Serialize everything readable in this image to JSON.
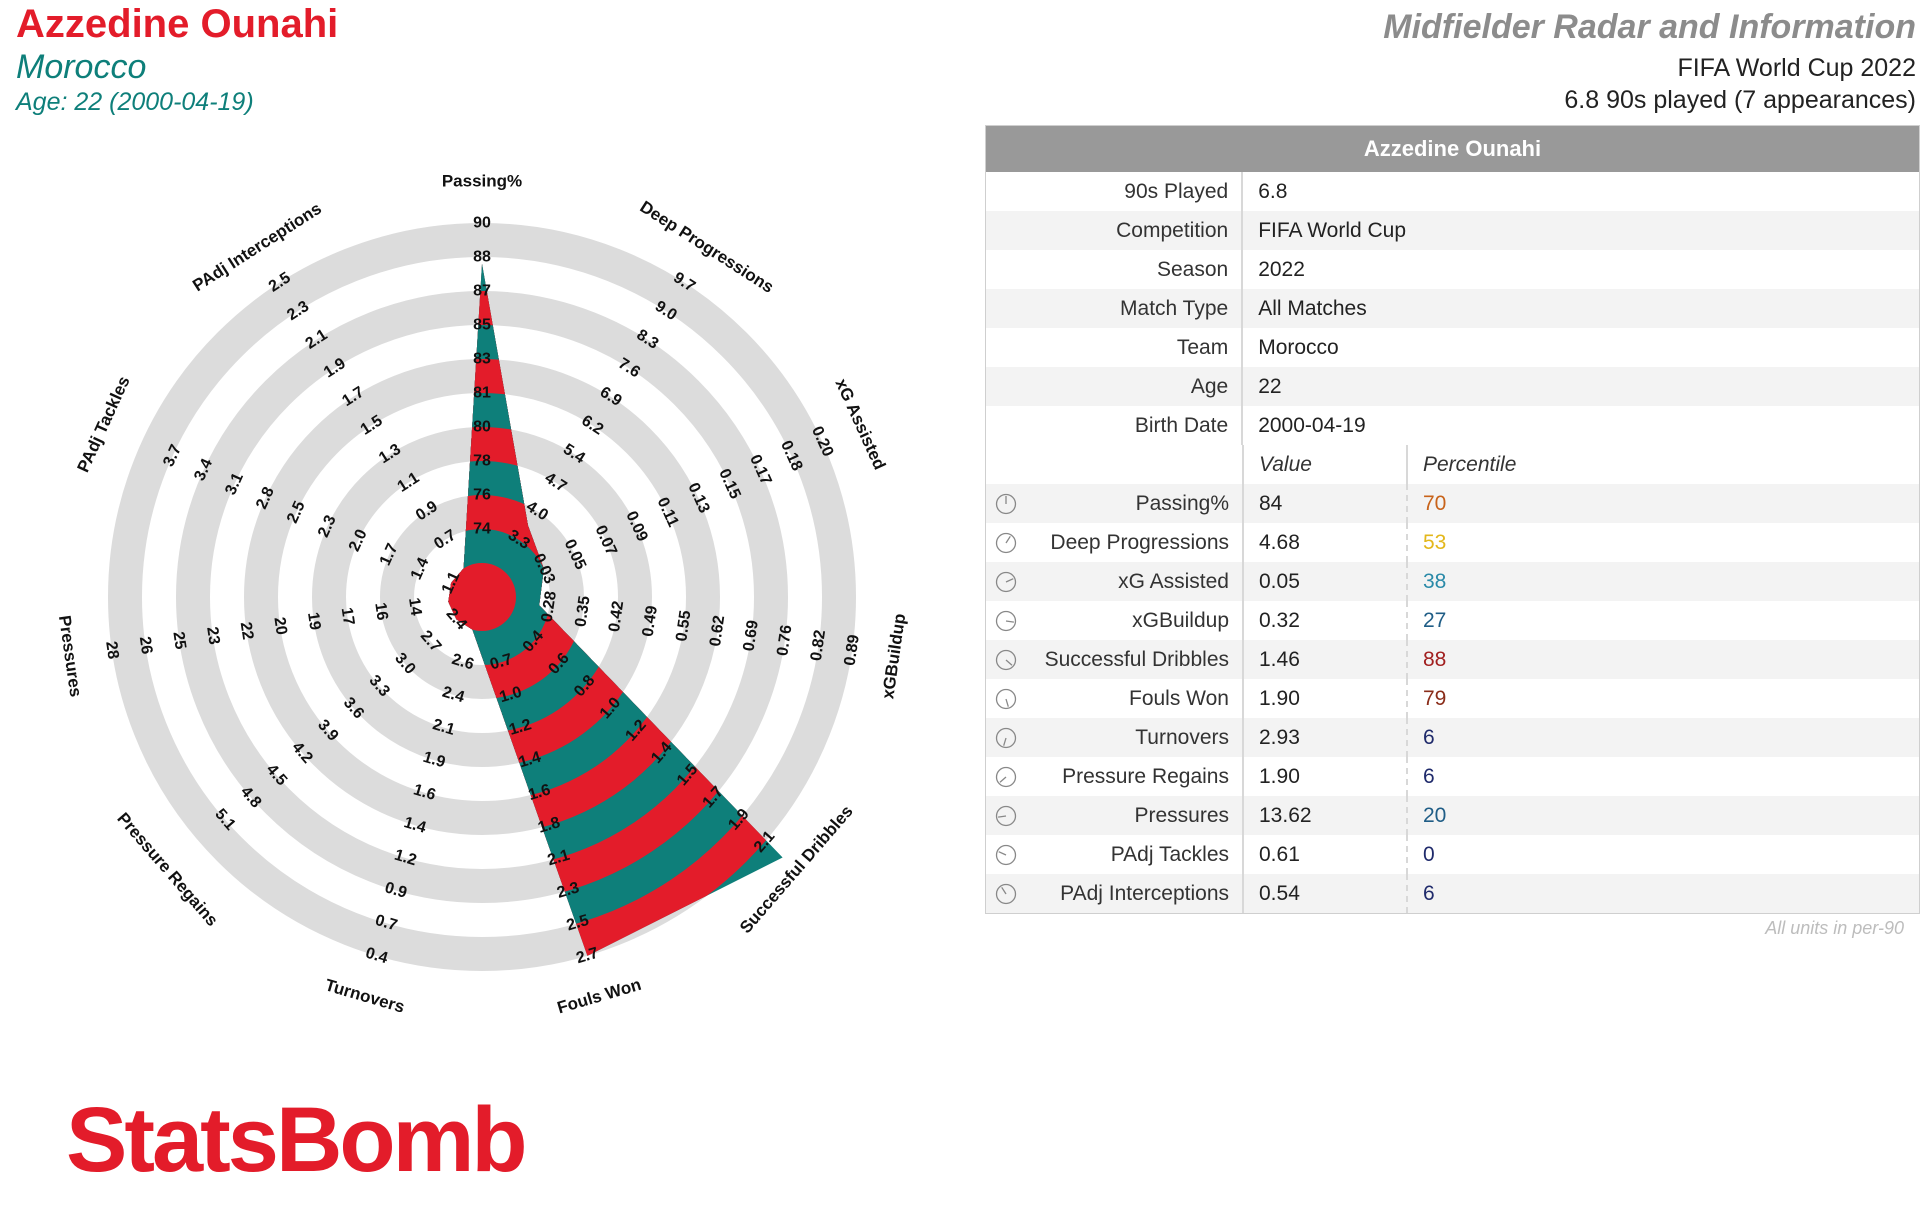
{
  "header": {
    "player_name": "Azzedine Ounahi",
    "team": "Morocco",
    "age_line": "Age: 22 (2000-04-19)",
    "title": "Midfielder Radar and Information",
    "competition_line": "FIFA World Cup 2022",
    "played_line": "6.8 90s played (7 appearances)"
  },
  "colors": {
    "red": "#e31c2a",
    "teal": "#0e7f7a",
    "ring_grey": "#dcdcdc",
    "p70": "#c8631a",
    "p53": "#e3b71b",
    "p38": "#2a8aa8",
    "p27": "#1f5d86",
    "p88": "#a11f1f",
    "p79": "#8a2d1a",
    "plow": "#1f2a6b"
  },
  "chart_data": {
    "type": "radar",
    "categories": [
      "Passing%",
      "Deep Progressions",
      "xG Assisted",
      "xGBuildup",
      "Successful Dribbles",
      "Fouls Won",
      "Turnovers",
      "Pressure Regains",
      "Pressures",
      "PAdj Tackles",
      "PAdj Interceptions"
    ],
    "tick_labels": [
      [
        "74",
        "76",
        "78",
        "80",
        "81",
        "83",
        "85",
        "87",
        "88",
        "90"
      ],
      [
        "3.3",
        "4.0",
        "4.7",
        "5.4",
        "6.2",
        "6.9",
        "7.6",
        "8.3",
        "9.0",
        "9.7"
      ],
      [
        "0.03",
        "0.05",
        "0.07",
        "0.09",
        "0.11",
        "0.13",
        "0.15",
        "0.17",
        "0.18",
        "0.20"
      ],
      [
        "0.28",
        "0.35",
        "0.42",
        "0.49",
        "0.55",
        "0.62",
        "0.69",
        "0.76",
        "0.82",
        "0.89"
      ],
      [
        "0.4",
        "0.6",
        "0.8",
        "1.0",
        "1.2",
        "1.4",
        "1.5",
        "1.7",
        "1.9",
        "2.1"
      ],
      [
        "0.7",
        "1.0",
        "1.2",
        "1.4",
        "1.6",
        "1.8",
        "2.1",
        "2.3",
        "2.5",
        "2.7"
      ],
      [
        "2.6",
        "2.4",
        "2.1",
        "1.9",
        "1.6",
        "1.4",
        "1.2",
        "0.9",
        "0.7",
        "0.4"
      ],
      [
        "2.7",
        "3.0",
        "3.3",
        "3.6",
        "3.9",
        "4.2",
        "4.5",
        "4.8",
        "5.1",
        ""
      ],
      [
        "14",
        "16",
        "17",
        "19",
        "20",
        "22",
        "23",
        "25",
        "26",
        "28"
      ],
      [
        "1.4",
        "1.7",
        "2.0",
        "2.3",
        "2.5",
        "2.8",
        "3.1",
        "3.4",
        "3.7",
        ""
      ],
      [
        "0.7",
        "0.9",
        "1.1",
        "1.3",
        "1.5",
        "1.7",
        "1.9",
        "2.1",
        "2.3",
        "2.5"
      ]
    ],
    "inner_labels": [
      "",
      "",
      "",
      "",
      "",
      "",
      "",
      "2.4",
      "",
      "1.1",
      ""
    ],
    "values": [
      84,
      4.68,
      0.05,
      0.32,
      1.46,
      1.9,
      2.93,
      1.9,
      13.62,
      0.61,
      0.54
    ],
    "scaled": [
      0.88,
      0.15,
      0.1,
      0.07,
      1.07,
      1.0,
      0.0,
      0.0,
      0.0,
      0.0,
      0.0
    ],
    "rings": 10
  },
  "table": {
    "header": "Azzedine Ounahi",
    "info": [
      {
        "label": "90s Played",
        "value": "6.8"
      },
      {
        "label": "Competition",
        "value": "FIFA World Cup"
      },
      {
        "label": "Season",
        "value": "2022"
      },
      {
        "label": "Match Type",
        "value": "All Matches"
      },
      {
        "label": "Team",
        "value": "Morocco"
      },
      {
        "label": "Age",
        "value": "22"
      },
      {
        "label": "Birth Date",
        "value": "2000-04-19"
      }
    ],
    "col_value": "Value",
    "col_percentile": "Percentile",
    "metrics": [
      {
        "label": "Passing%",
        "value": "84",
        "percentile": "70",
        "color": "#c8631a"
      },
      {
        "label": "Deep Progressions",
        "value": "4.68",
        "percentile": "53",
        "color": "#e3b71b"
      },
      {
        "label": "xG Assisted",
        "value": "0.05",
        "percentile": "38",
        "color": "#2a8aa8"
      },
      {
        "label": "xGBuildup",
        "value": "0.32",
        "percentile": "27",
        "color": "#1f5d86"
      },
      {
        "label": "Successful Dribbles",
        "value": "1.46",
        "percentile": "88",
        "color": "#a11f1f"
      },
      {
        "label": "Fouls Won",
        "value": "1.90",
        "percentile": "79",
        "color": "#8a2d1a"
      },
      {
        "label": "Turnovers",
        "value": "2.93",
        "percentile": "6",
        "color": "#1f2a6b"
      },
      {
        "label": "Pressure Regains",
        "value": "1.90",
        "percentile": "6",
        "color": "#1f2a6b"
      },
      {
        "label": "Pressures",
        "value": "13.62",
        "percentile": "20",
        "color": "#1f5d86"
      },
      {
        "label": "PAdj Tackles",
        "value": "0.61",
        "percentile": "0",
        "color": "#1f2a6b"
      },
      {
        "label": "PAdj Interceptions",
        "value": "0.54",
        "percentile": "6",
        "color": "#1f2a6b"
      }
    ],
    "units_note": "All units in per-90"
  },
  "logo": "StatsBomb"
}
